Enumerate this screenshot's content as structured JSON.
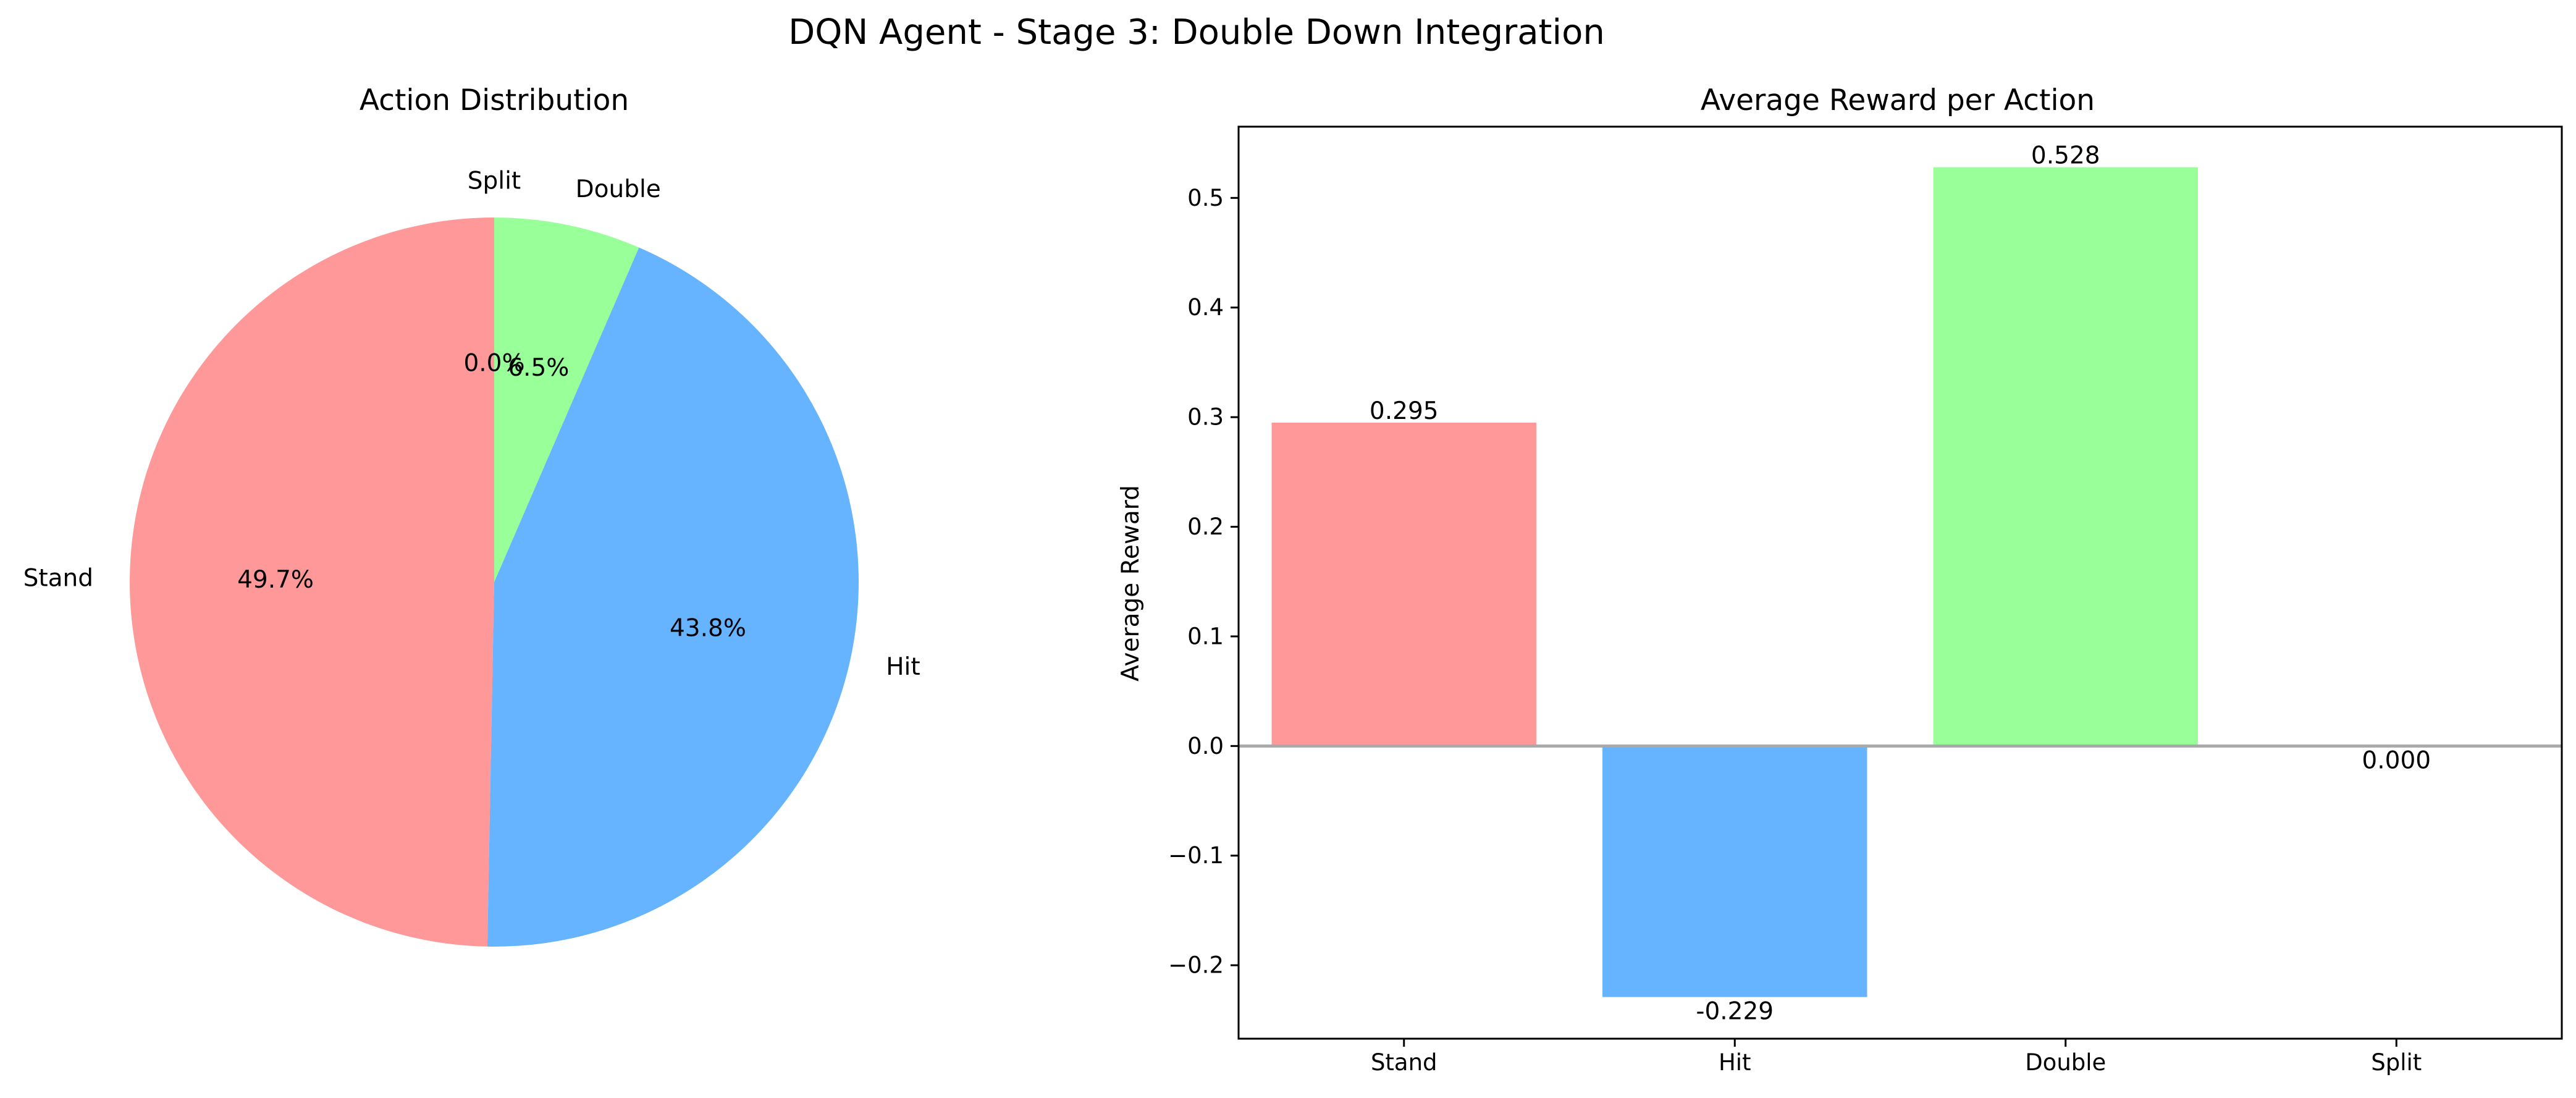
{
  "figure": {
    "title": "DQN Agent - Stage 3: Double Down Integration"
  },
  "chart_data": [
    {
      "type": "pie",
      "title": "Action Distribution",
      "labels": [
        "Stand",
        "Hit",
        "Double",
        "Split"
      ],
      "values": [
        49.7,
        43.8,
        6.5,
        0.0
      ],
      "percent_labels": [
        "49.7%",
        "43.8%",
        "6.5%",
        "0.0%"
      ],
      "colors": [
        "#ff9999",
        "#66b3ff",
        "#99ff99",
        "#ffcc99"
      ],
      "start_angle_deg": 90,
      "direction": "counterclockwise",
      "legend": "none"
    },
    {
      "type": "bar",
      "title": "Average Reward per Action",
      "categories": [
        "Stand",
        "Hit",
        "Double",
        "Split"
      ],
      "values": [
        0.295,
        -0.229,
        0.528,
        0.0
      ],
      "value_labels": [
        "0.295",
        "-0.229",
        "0.528",
        "0.000"
      ],
      "colors": [
        "#ff9999",
        "#66b3ff",
        "#99ff99",
        "#ffcc99"
      ],
      "xlabel": "",
      "ylabel": "Average Reward",
      "ylim": [
        -0.267,
        0.565
      ],
      "yticks": [
        -0.2,
        -0.1,
        0.0,
        0.1,
        0.2,
        0.3,
        0.4,
        0.5
      ],
      "ytick_labels": [
        "−0.2",
        "−0.1",
        "0.0",
        "0.1",
        "0.2",
        "0.3",
        "0.4",
        "0.5"
      ],
      "zero_line": true,
      "zero_line_color": "#a9a9a9",
      "grid": false,
      "legend": "none"
    }
  ]
}
